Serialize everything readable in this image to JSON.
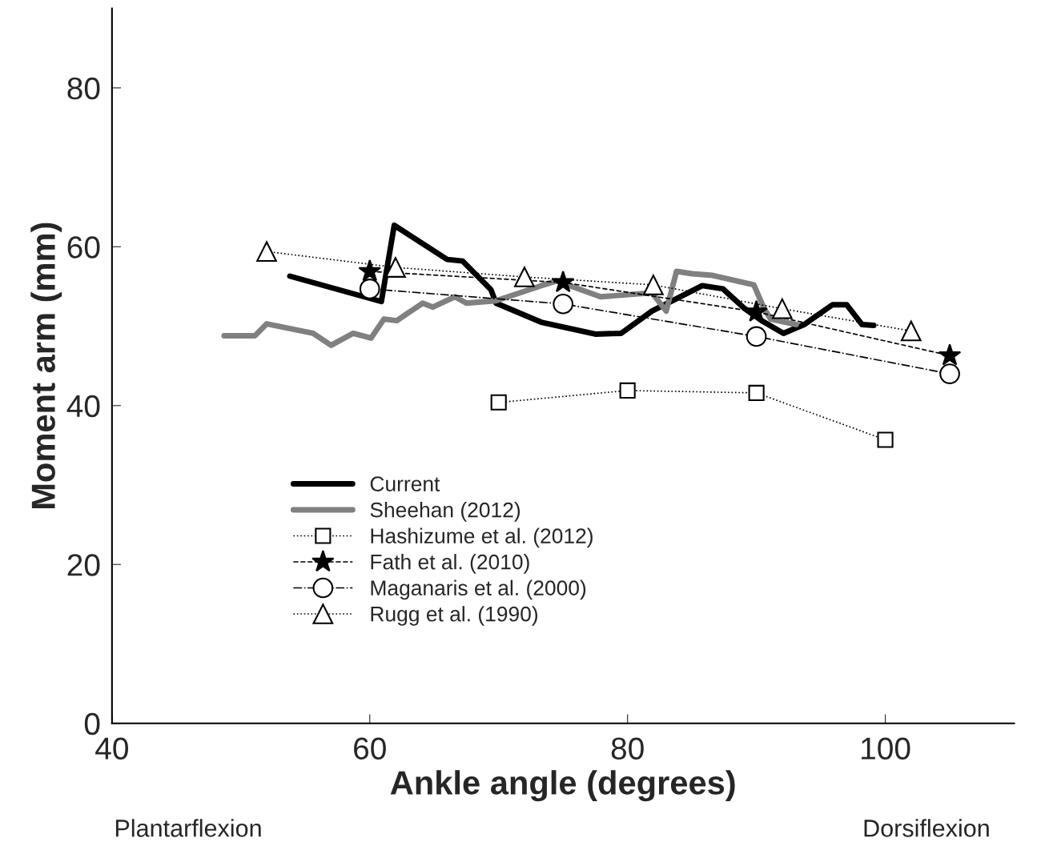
{
  "chart_data": {
    "type": "line",
    "xlabel": "Ankle angle (degrees)",
    "ylabel": "Moment arm (mm)",
    "xlim": [
      40,
      110
    ],
    "ylim": [
      0,
      90
    ],
    "xticks": [
      40,
      60,
      80,
      100
    ],
    "yticks": [
      0,
      20,
      40,
      60,
      80
    ],
    "grid": false,
    "legend": "bottom left",
    "annotations": [
      "Plantarflexion",
      "Dorsiflexion"
    ],
    "series": [
      {
        "name": "Current",
        "color": "#000000",
        "line_style": "solid",
        "marker": "none",
        "x": [
          53.8,
          60.9,
          61.9,
          66.0,
          67.2,
          69.4,
          69.8,
          73.3,
          77.5,
          79.5,
          81.9,
          85.8,
          87.4,
          89.1,
          90.5,
          92.1,
          93.7,
          95.9,
          97.0,
          98.2,
          99.1
        ],
        "values": [
          56.3,
          53.1,
          62.7,
          58.4,
          58.2,
          54.6,
          52.9,
          50.5,
          49.0,
          49.1,
          51.9,
          55.1,
          54.7,
          52.2,
          50.6,
          49.1,
          50.2,
          52.7,
          52.7,
          50.2,
          50.1
        ]
      },
      {
        "name": "Sheehan (2012)",
        "color": "#808080",
        "line_style": "solid",
        "marker": "none",
        "x": [
          48.7,
          51.1,
          52.0,
          55.6,
          57.0,
          58.7,
          60.1,
          61.1,
          62.1,
          64.1,
          64.9,
          66.6,
          67.5,
          69.8,
          73.3,
          74.5,
          77.9,
          81.9,
          83.0,
          83.8,
          85.0,
          86.6,
          89.8,
          90.6,
          91.1,
          93.1
        ],
        "values": [
          48.8,
          48.8,
          50.3,
          49.1,
          47.6,
          49.1,
          48.5,
          50.9,
          50.7,
          52.9,
          52.4,
          53.7,
          52.9,
          53.2,
          55.1,
          55.7,
          53.7,
          54.2,
          51.9,
          56.9,
          56.6,
          56.4,
          55.2,
          52.2,
          50.9,
          50.2
        ]
      },
      {
        "name": "Hashizume et al. (2012)",
        "color": "#000000",
        "line_style": "dotted",
        "marker": "square",
        "x": [
          70,
          80,
          90,
          100
        ],
        "values": [
          40.4,
          41.9,
          41.6,
          35.7
        ]
      },
      {
        "name": "Fath et al. (2010)",
        "color": "#000000",
        "line_style": "dashed",
        "marker": "star",
        "x": [
          60,
          75,
          90,
          105
        ],
        "values": [
          56.9,
          55.5,
          51.8,
          46.3
        ]
      },
      {
        "name": "Maganaris et al. (2000)",
        "color": "#000000",
        "line_style": "dashdot",
        "marker": "circle",
        "x": [
          60,
          75,
          90,
          105
        ],
        "values": [
          54.7,
          52.8,
          48.7,
          44.0
        ]
      },
      {
        "name": "Rugg et al. (1990)",
        "color": "#000000",
        "line_style": "dotted",
        "marker": "triangle",
        "x": [
          52,
          62,
          72,
          82,
          92,
          102
        ],
        "values": [
          59.4,
          57.4,
          56.2,
          55.2,
          52.2,
          49.4
        ]
      }
    ]
  }
}
